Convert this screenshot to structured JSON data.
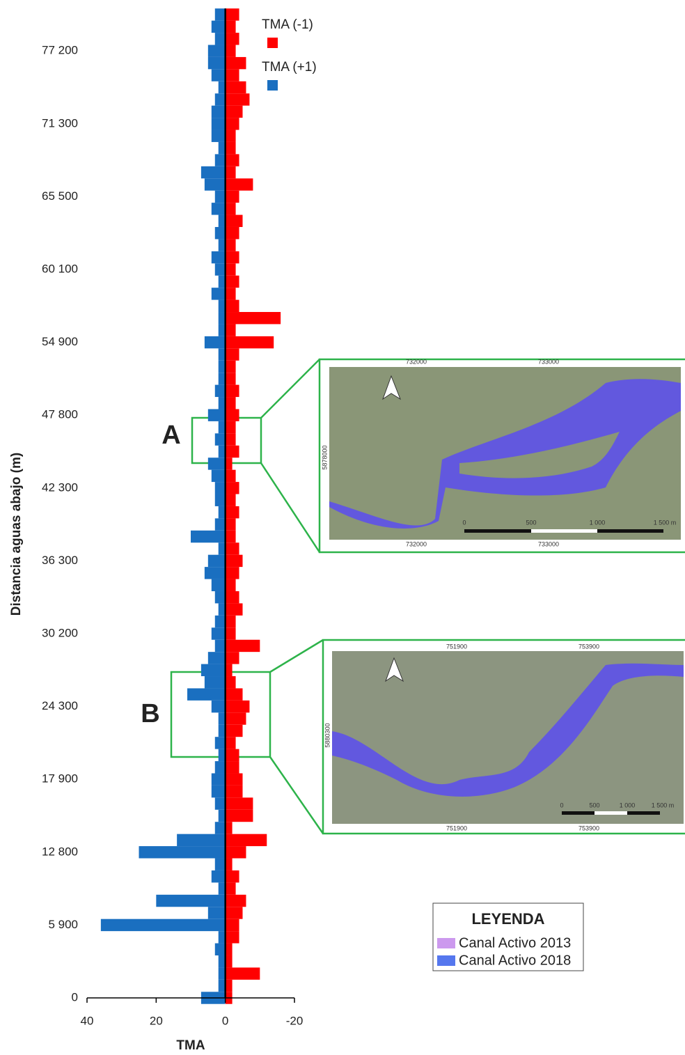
{
  "chart_data": {
    "type": "diverging-bar",
    "x_label": "TMA",
    "y_label": "Distancia aguas abajo (m)",
    "xlim": [
      40,
      -20
    ],
    "xticks": [
      40,
      20,
      0,
      -20
    ],
    "categories": [
      "0",
      null,
      null,
      null,
      null,
      null,
      "5 900",
      null,
      null,
      null,
      null,
      null,
      "12 800",
      null,
      null,
      null,
      null,
      null,
      "17 900",
      null,
      null,
      null,
      null,
      null,
      "24 300",
      null,
      null,
      null,
      null,
      null,
      "30 200",
      null,
      null,
      null,
      null,
      null,
      "36 300",
      null,
      null,
      null,
      null,
      null,
      "42 300",
      null,
      null,
      null,
      null,
      null,
      "47 800",
      null,
      null,
      null,
      null,
      null,
      "54 900",
      null,
      null,
      null,
      null,
      null,
      "60 100",
      null,
      null,
      null,
      null,
      null,
      "65 500",
      null,
      null,
      null,
      null,
      null,
      "71 300",
      null,
      null,
      null,
      null,
      null,
      "77 200",
      null,
      null,
      null
    ],
    "series": [
      {
        "name": "TMA (-1)",
        "color": "#ff0000",
        "values": [
          -2,
          -2,
          -10,
          -2,
          -2,
          -4,
          -4,
          -5,
          -6,
          -3,
          -4,
          -2,
          -6,
          -12,
          -2,
          -8,
          -8,
          -5,
          -5,
          -4,
          -4,
          -3,
          -5,
          -6,
          -7,
          -5,
          -3,
          -2,
          -4,
          -10,
          -3,
          -3,
          -5,
          -4,
          -3,
          -4,
          -5,
          -4,
          -3,
          -3,
          -4,
          -3,
          -4,
          -3,
          -2,
          -4,
          -3,
          -3,
          -4,
          -3,
          -4,
          -3,
          -3,
          -4,
          -14,
          -3,
          -16,
          -4,
          -3,
          -4,
          -3,
          -4,
          -3,
          -4,
          -5,
          -3,
          -4,
          -8,
          -3,
          -4,
          -3,
          -3,
          -4,
          -5,
          -7,
          -6,
          -4,
          -6,
          -3,
          -4,
          -3,
          -4
        ]
      },
      {
        "name": "TMA (+1)",
        "color": "#1a6fc0",
        "values": [
          7,
          2,
          2,
          2,
          3,
          2,
          36,
          5,
          20,
          2,
          4,
          3,
          25,
          14,
          3,
          2,
          3,
          4,
          4,
          3,
          2,
          3,
          2,
          2,
          4,
          11,
          6,
          7,
          5,
          3,
          4,
          3,
          2,
          3,
          4,
          6,
          5,
          2,
          10,
          3,
          2,
          3,
          3,
          4,
          5,
          2,
          3,
          2,
          5,
          2,
          3,
          2,
          2,
          2,
          6,
          2,
          2,
          2,
          4,
          2,
          3,
          4,
          2,
          3,
          2,
          4,
          3,
          6,
          7,
          3,
          2,
          4,
          4,
          4,
          3,
          2,
          4,
          5,
          5,
          3,
          4,
          3
        ]
      }
    ]
  },
  "zoom_labels": [
    "A",
    "B"
  ],
  "inset_a": {
    "top_coords": [
      "732000",
      "733000"
    ],
    "bottom_coords": [
      "732000",
      "733000"
    ],
    "side_coord": "5878000",
    "scale": [
      "0",
      "500",
      "1 000",
      "1 500 m"
    ]
  },
  "inset_b": {
    "top_coords": [
      "751900",
      "753900"
    ],
    "bottom_coords": [
      "751900",
      "753900"
    ],
    "side_coord": "5880300",
    "scale": [
      "0",
      "500",
      "1 000",
      "1 500 m"
    ]
  },
  "map_legend": {
    "title": "LEYENDA",
    "items": [
      {
        "label": "Canal Activo 2013",
        "color": "#cc99ee"
      },
      {
        "label": "Canal Activo 2018",
        "color": "#5577ee"
      }
    ]
  }
}
